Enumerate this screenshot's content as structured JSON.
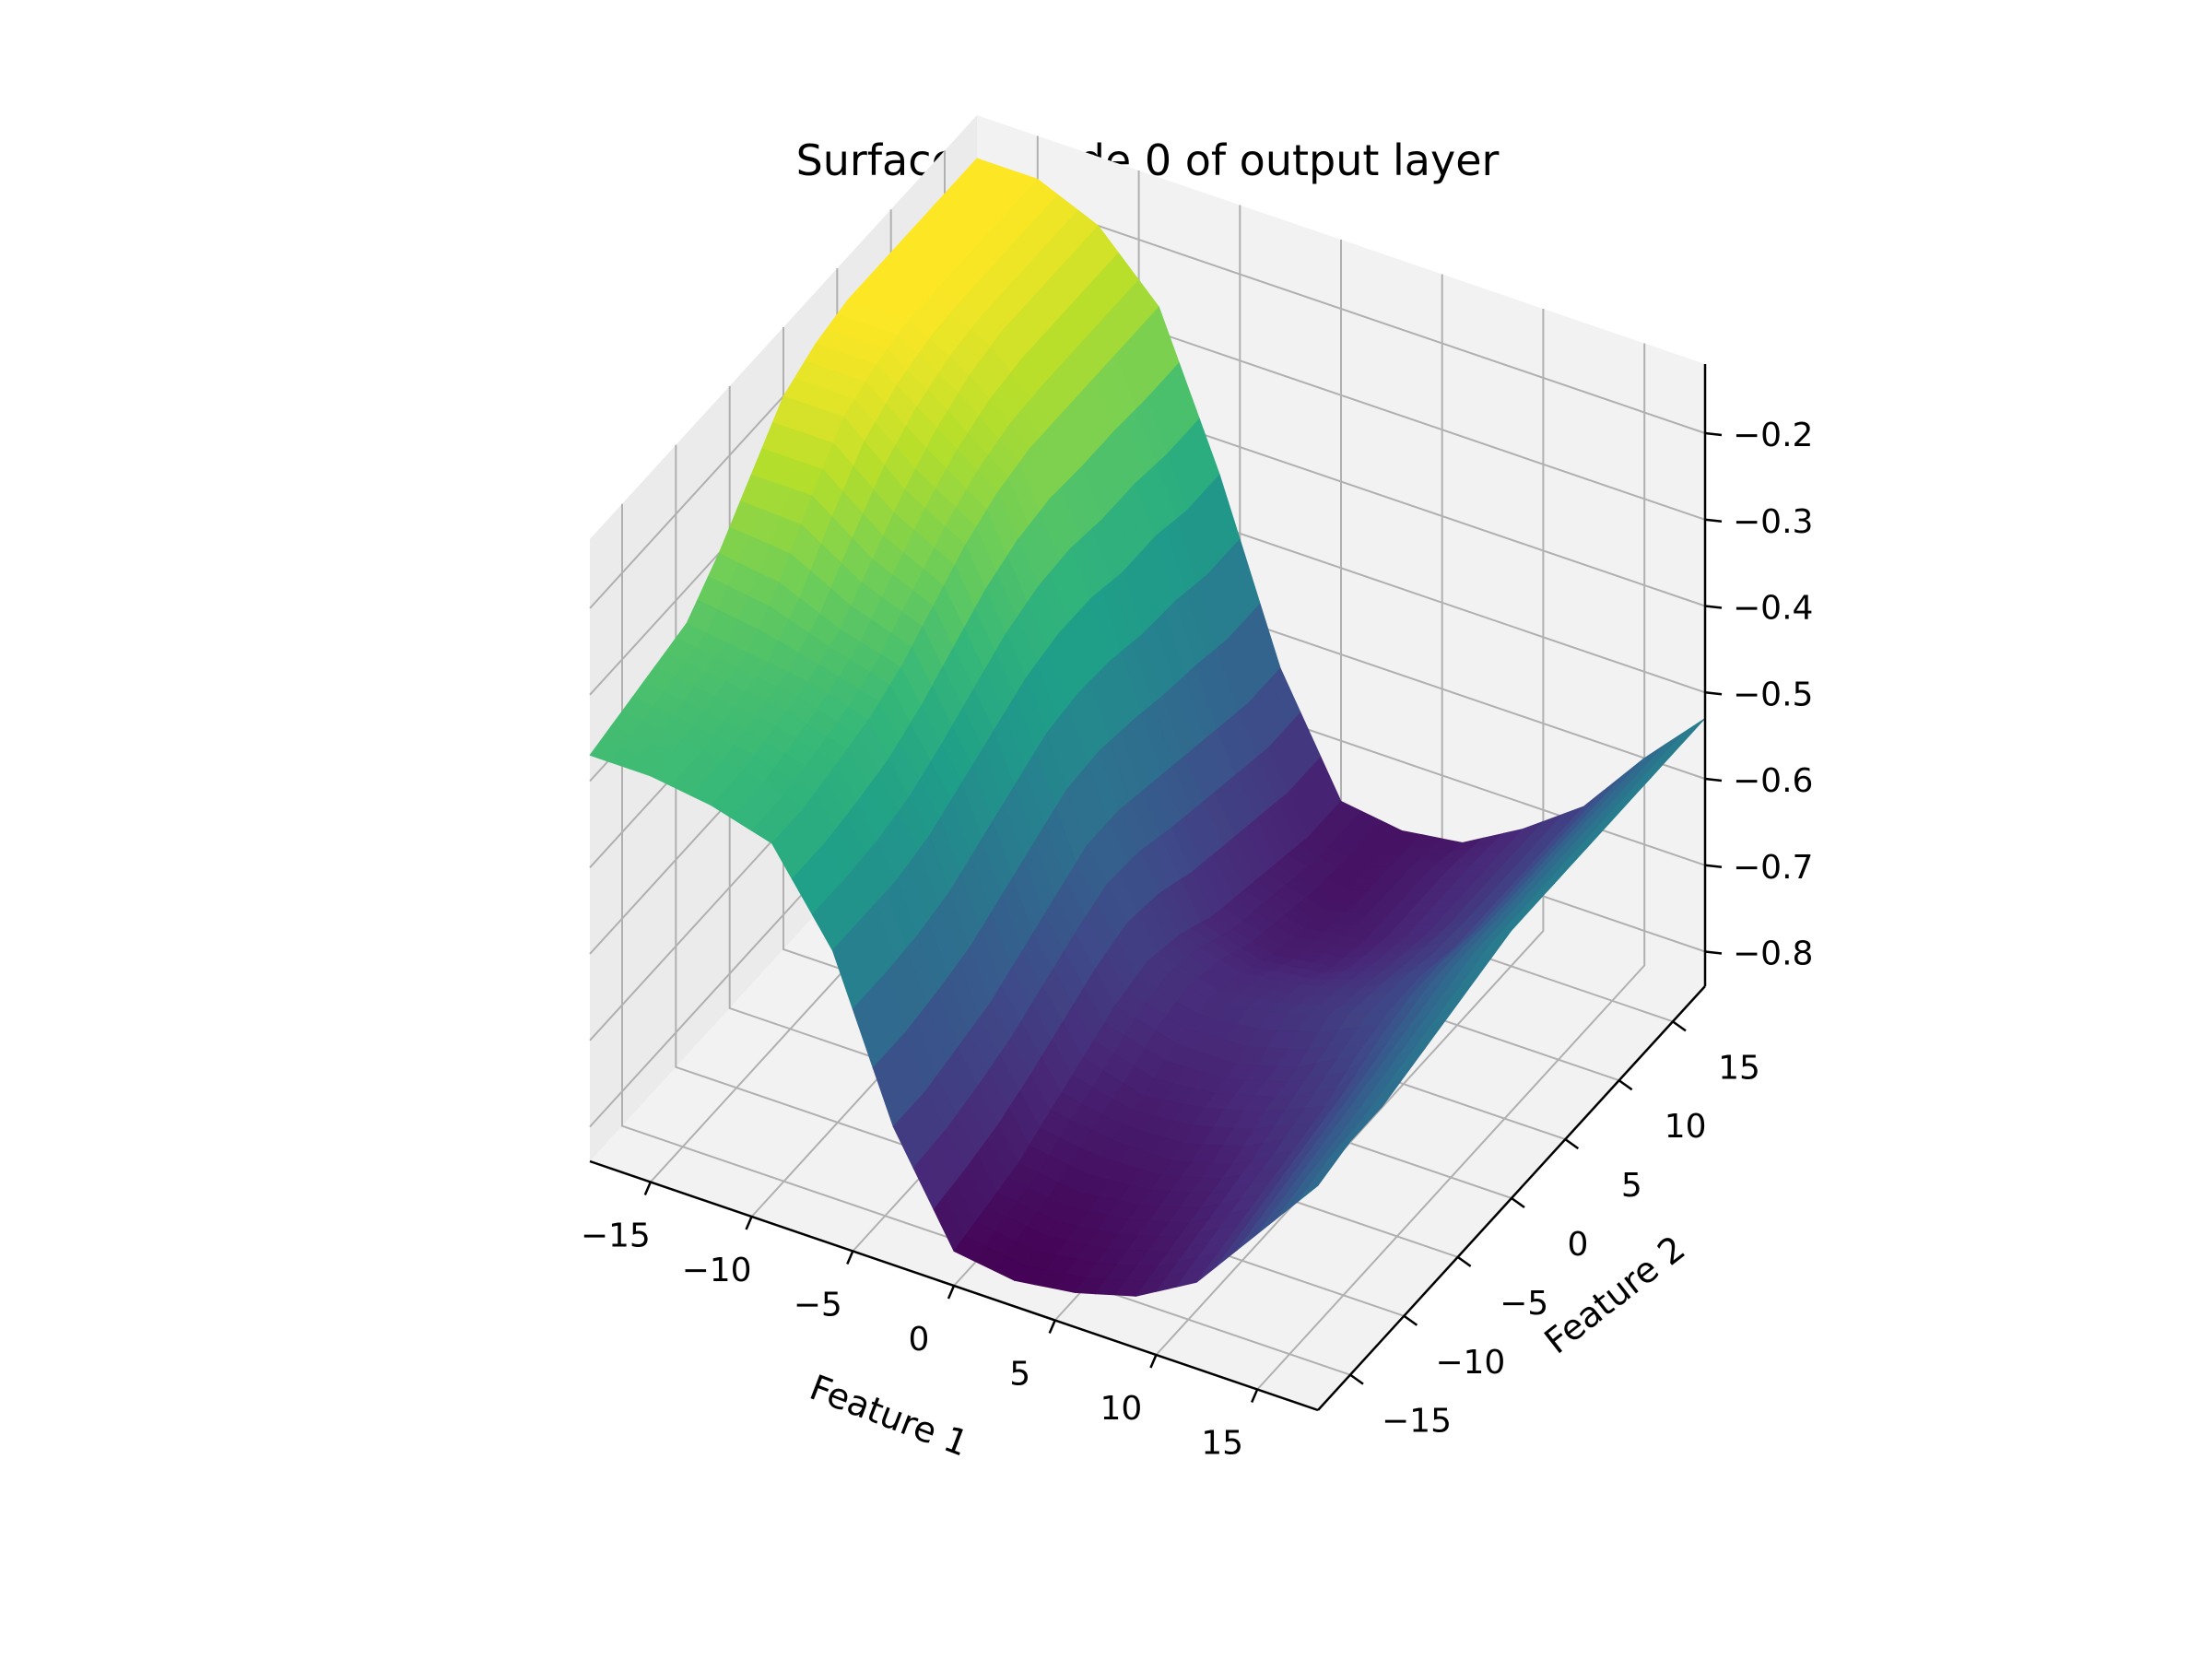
{
  "chart_data": {
    "type": "surface",
    "title": "Surface of node 0 of output layer",
    "xlabel": "Feature 1",
    "ylabel": "Feature 2",
    "zlabel": "",
    "xlim": [
      -18,
      18
    ],
    "ylim": [
      -18,
      18
    ],
    "zlim": [
      -0.84,
      -0.12
    ],
    "x_ticks": [
      "−15",
      "−10",
      "−5",
      "0",
      "5",
      "10",
      "15"
    ],
    "y_ticks": [
      "−15",
      "−10",
      "−5",
      "0",
      "5",
      "10",
      "15"
    ],
    "z_ticks": [
      "−0.8",
      "−0.7",
      "−0.6",
      "−0.5",
      "−0.4",
      "−0.3",
      "−0.2"
    ],
    "x_tick_values": [
      -15,
      -10,
      -5,
      0,
      5,
      10,
      15
    ],
    "y_tick_values": [
      -15,
      -10,
      -5,
      0,
      5,
      10,
      15
    ],
    "z_tick_values": [
      -0.8,
      -0.7,
      -0.6,
      -0.5,
      -0.4,
      -0.3,
      -0.2
    ],
    "colormap": "viridis",
    "grid": true,
    "x": [
      -18,
      -15,
      -12,
      -9,
      -6,
      -3,
      0,
      3,
      6,
      9,
      12,
      15,
      18
    ],
    "y": [
      -18,
      -15,
      -12,
      -9,
      -6,
      -3,
      0,
      3,
      6,
      9,
      12,
      15,
      18
    ],
    "z": [
      [
        -0.37,
        -0.37,
        -0.38,
        -0.4,
        -0.5,
        -0.68,
        -0.8,
        -0.81,
        -0.8,
        -0.78,
        -0.74,
        -0.66,
        -0.58
      ],
      [
        -0.36,
        -0.37,
        -0.38,
        -0.4,
        -0.5,
        -0.68,
        -0.79,
        -0.8,
        -0.79,
        -0.77,
        -0.73,
        -0.65,
        -0.57
      ],
      [
        -0.35,
        -0.36,
        -0.37,
        -0.39,
        -0.5,
        -0.67,
        -0.78,
        -0.79,
        -0.78,
        -0.76,
        -0.72,
        -0.64,
        -0.57
      ],
      [
        -0.34,
        -0.35,
        -0.36,
        -0.38,
        -0.49,
        -0.66,
        -0.76,
        -0.77,
        -0.77,
        -0.75,
        -0.71,
        -0.63,
        -0.56
      ],
      [
        -0.3,
        -0.31,
        -0.34,
        -0.36,
        -0.47,
        -0.64,
        -0.74,
        -0.76,
        -0.75,
        -0.73,
        -0.7,
        -0.62,
        -0.55
      ],
      [
        -0.25,
        -0.25,
        -0.3,
        -0.33,
        -0.45,
        -0.62,
        -0.72,
        -0.74,
        -0.74,
        -0.72,
        -0.68,
        -0.61,
        -0.54
      ],
      [
        -0.2,
        -0.2,
        -0.26,
        -0.3,
        -0.43,
        -0.6,
        -0.71,
        -0.73,
        -0.72,
        -0.7,
        -0.67,
        -0.6,
        -0.53
      ],
      [
        -0.18,
        -0.18,
        -0.23,
        -0.28,
        -0.42,
        -0.6,
        -0.72,
        -0.74,
        -0.73,
        -0.71,
        -0.67,
        -0.6,
        -0.53
      ],
      [
        -0.17,
        -0.17,
        -0.21,
        -0.27,
        -0.42,
        -0.61,
        -0.74,
        -0.76,
        -0.75,
        -0.72,
        -0.68,
        -0.6,
        -0.53
      ],
      [
        -0.17,
        -0.17,
        -0.2,
        -0.27,
        -0.43,
        -0.62,
        -0.75,
        -0.77,
        -0.76,
        -0.73,
        -0.68,
        -0.6,
        -0.53
      ],
      [
        -0.17,
        -0.17,
        -0.2,
        -0.27,
        -0.43,
        -0.63,
        -0.76,
        -0.78,
        -0.76,
        -0.73,
        -0.68,
        -0.6,
        -0.53
      ],
      [
        -0.17,
        -0.17,
        -0.2,
        -0.27,
        -0.44,
        -0.64,
        -0.77,
        -0.78,
        -0.76,
        -0.73,
        -0.68,
        -0.6,
        -0.53
      ],
      [
        -0.17,
        -0.17,
        -0.2,
        -0.27,
        -0.44,
        -0.64,
        -0.77,
        -0.78,
        -0.77,
        -0.73,
        -0.68,
        -0.6,
        -0.53
      ]
    ]
  }
}
